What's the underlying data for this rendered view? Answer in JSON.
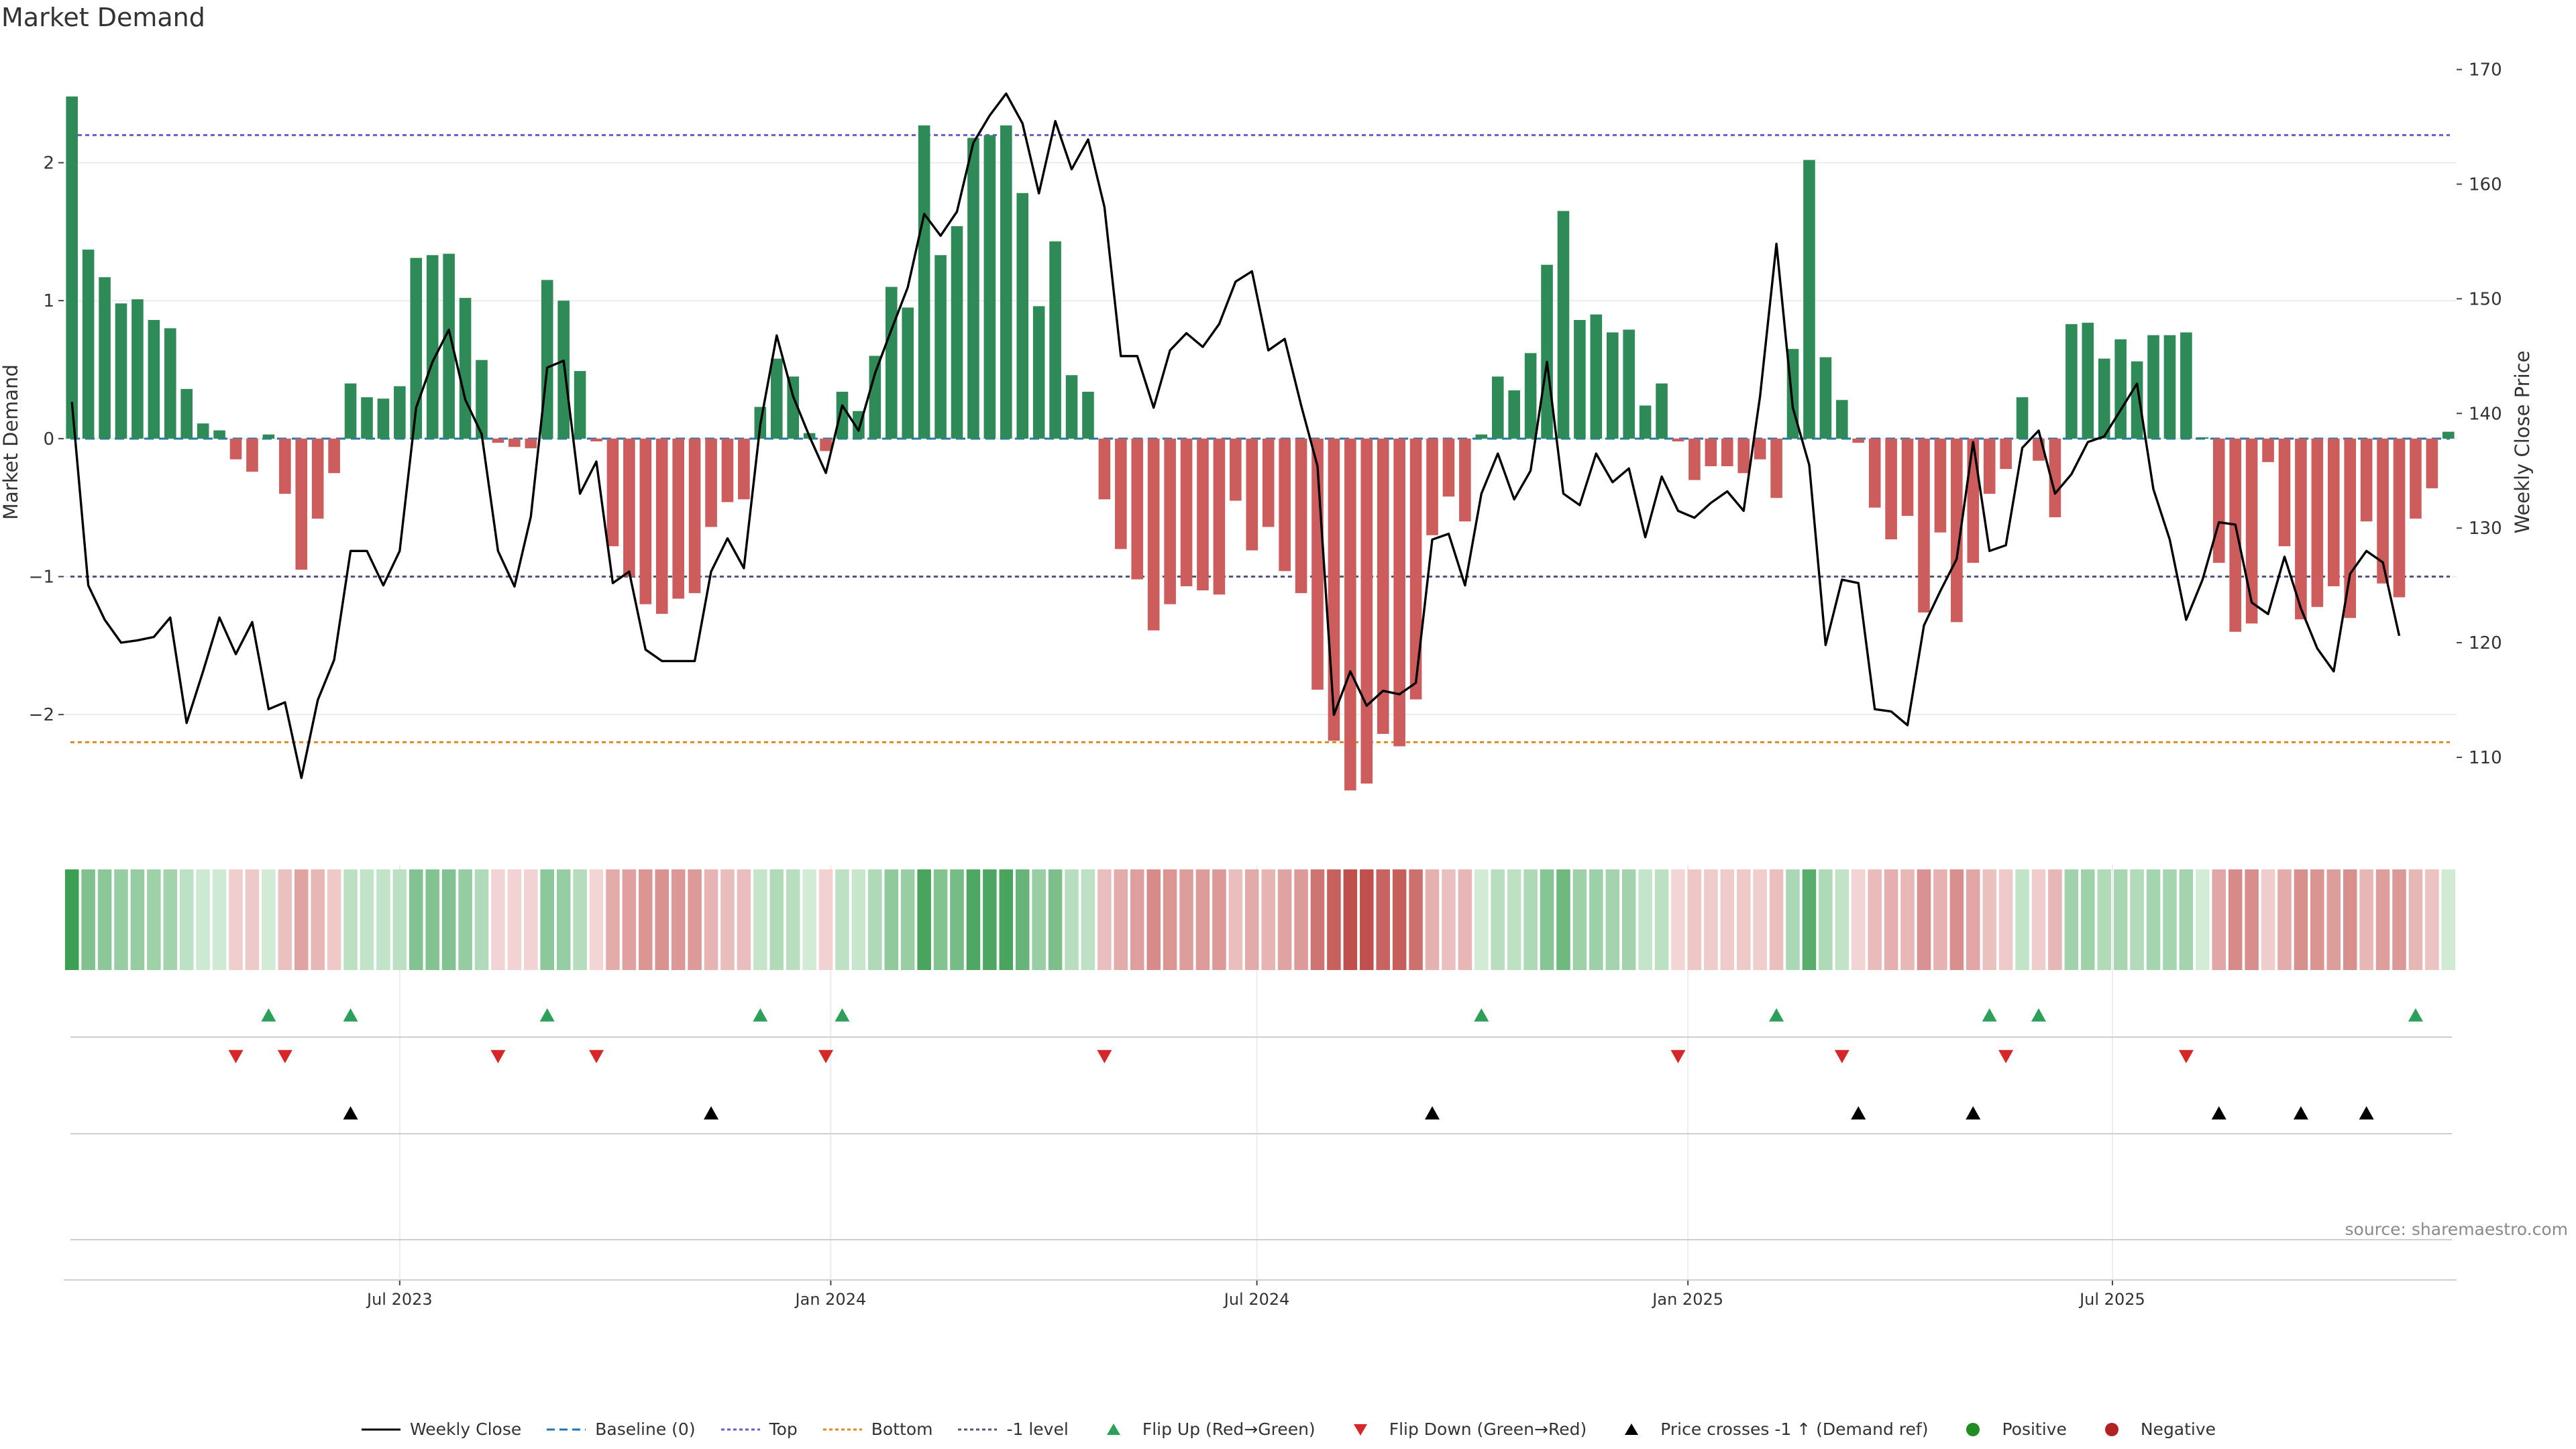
{
  "title": "Market Demand",
  "source": "source: sharemaestro.com",
  "colors": {
    "positive": "#2e8b57",
    "negative": "#cd5c5c",
    "price_line": "#000000",
    "top_line": "#6a5acd",
    "bottom_line": "#e08a1e",
    "minus1_line": "#555577",
    "baseline": "#1f77b4",
    "flip_up": "#2ca05a",
    "flip_down": "#d62728",
    "cross": "#000000"
  },
  "legend": [
    {
      "label": "Weekly Close",
      "symbol": "solid-line",
      "color": "#000000"
    },
    {
      "label": "Baseline (0)",
      "symbol": "dashed-line",
      "color": "#1f77b4"
    },
    {
      "label": "Top",
      "symbol": "dotted-line",
      "color": "#6a5acd"
    },
    {
      "label": "Bottom",
      "symbol": "dotted-line",
      "color": "#e08a1e"
    },
    {
      "label": "-1 level",
      "symbol": "dotted-line",
      "color": "#555577"
    },
    {
      "label": "Flip Up (Red→Green)",
      "symbol": "triangle-up",
      "color": "#2ca05a"
    },
    {
      "label": "Flip Down (Green→Red)",
      "symbol": "triangle-down",
      "color": "#d62728"
    },
    {
      "label": "Price crosses -1 ↑ (Demand ref)",
      "symbol": "triangle-up",
      "color": "#000000"
    },
    {
      "label": "Positive",
      "symbol": "circle",
      "color": "#228b22"
    },
    {
      "label": "Negative",
      "symbol": "circle",
      "color": "#b22222"
    }
  ],
  "chart_data": {
    "type": "bar+line",
    "title": "Market Demand",
    "ylabel": "Market Demand",
    "y2label": "Weekly Close Price",
    "ylim": [
      -2.85,
      2.8
    ],
    "y2lim": [
      103.5,
      171.5
    ],
    "yticks": [
      -2,
      -1,
      0,
      1,
      2
    ],
    "yticklabels": [
      "−2",
      "−1",
      "0",
      "1",
      "2"
    ],
    "y2ticks": [
      110,
      120,
      130,
      140,
      150,
      160,
      170
    ],
    "y2ticklabels": [
      "110",
      "120",
      "130",
      "140",
      "150",
      "160",
      "170"
    ],
    "xticks": [
      {
        "index": 20.5,
        "label": "Jul 2023"
      },
      {
        "index": 46.8,
        "label": "Jan 2024"
      },
      {
        "index": 72.8,
        "label": "Jul 2024"
      },
      {
        "index": 99.1,
        "label": "Jan 2025"
      },
      {
        "index": 125,
        "label": "Jul 2025"
      }
    ],
    "reference_lines": {
      "top": 2.2,
      "bottom": -2.2,
      "minus1": -1,
      "baseline": 0
    },
    "demand": [
      2.48,
      1.37,
      1.17,
      0.98,
      1.01,
      0.86,
      0.8,
      0.36,
      0.11,
      0.06,
      -0.15,
      -0.24,
      0.03,
      -0.4,
      -0.95,
      -0.58,
      -0.25,
      0.4,
      0.3,
      0.29,
      0.38,
      1.31,
      1.33,
      1.34,
      1.02,
      0.57,
      -0.03,
      -0.06,
      -0.07,
      1.15,
      1.0,
      0.49,
      -0.02,
      -0.78,
      -1.0,
      -1.2,
      -1.27,
      -1.16,
      -1.12,
      -0.64,
      -0.46,
      -0.44,
      0.23,
      0.58,
      0.45,
      0.04,
      -0.09,
      0.34,
      0.2,
      0.6,
      1.1,
      0.95,
      2.27,
      1.33,
      1.54,
      2.18,
      2.2,
      2.27,
      1.78,
      0.96,
      1.43,
      0.46,
      0.34,
      -0.44,
      -0.8,
      -1.02,
      -1.39,
      -1.2,
      -1.07,
      -1.1,
      -1.13,
      -0.45,
      -0.81,
      -0.64,
      -0.96,
      -1.12,
      -1.82,
      -2.19,
      -2.55,
      -2.5,
      -2.14,
      -2.23,
      -1.89,
      -0.7,
      -0.42,
      -0.6,
      0.03,
      0.45,
      0.35,
      0.62,
      1.26,
      1.65,
      0.86,
      0.9,
      0.77,
      0.79,
      0.24,
      0.4,
      -0.02,
      -0.3,
      -0.2,
      -0.2,
      -0.25,
      -0.15,
      -0.43,
      0.65,
      2.02,
      0.59,
      0.28,
      -0.03,
      -0.5,
      -0.73,
      -0.56,
      -1.26,
      -0.68,
      -1.33,
      -0.9,
      -0.4,
      -0.22,
      0.3,
      -0.16,
      -0.57,
      0.83,
      0.84,
      0.58,
      0.72,
      0.56,
      0.75,
      0.75,
      0.77,
      0.01,
      -0.9,
      -1.4,
      -1.34,
      -0.17,
      -0.78,
      -1.31,
      -1.22,
      -1.07,
      -1.3,
      -0.6,
      -1.05,
      -1.15,
      -0.58,
      -0.36,
      0.05
    ],
    "weekly_close": [
      141,
      125,
      122,
      120,
      120.2,
      120.5,
      122.2,
      113,
      117.5,
      122.2,
      119,
      121.8,
      114.2,
      114.8,
      108.2,
      115,
      118.5,
      128,
      128,
      125,
      128,
      140.5,
      144.5,
      147.3,
      141.2,
      138.2,
      128,
      124.9,
      131,
      144,
      144.6,
      133,
      135.8,
      125.2,
      126.2,
      119.4,
      118.4,
      118.4,
      118.4,
      126.2,
      129.1,
      126.5,
      139,
      146.8,
      141.5,
      138,
      134.8,
      140.7,
      138.5,
      143.5,
      147.3,
      151,
      157.4,
      155.5,
      157.6,
      163.6,
      166,
      167.9,
      165.3,
      159.2,
      165.5,
      161.3,
      163.9,
      158,
      145,
      145,
      140.5,
      145.5,
      147,
      145.8,
      147.8,
      151.5,
      152.4,
      145.5,
      146.5,
      140.7,
      135.4,
      113.7,
      117.5,
      114.5,
      115.8,
      115.5,
      116.5,
      129,
      129.5,
      125,
      133,
      136.5,
      132.5,
      135,
      144.5,
      133,
      132,
      136.5,
      134,
      135.2,
      129.2,
      134.5,
      131.5,
      130.9,
      132.2,
      133.2,
      131.5,
      141.5,
      154.8,
      140.5,
      135.5,
      119.8,
      125.5,
      125.2,
      114.2,
      114,
      112.8,
      121.5,
      124.5,
      127.3,
      137.5,
      128,
      128.5,
      137,
      138.5,
      133,
      134.7,
      137.5,
      138,
      140.3,
      142.6,
      133.4,
      129,
      122,
      125.5,
      130.5,
      130.3,
      123.5,
      122.5,
      127.5,
      123,
      119.5,
      117.5,
      126,
      128,
      127,
      120.6
    ],
    "flip_up_indices": [
      12,
      17,
      29,
      42,
      47,
      86,
      104,
      117,
      120,
      143
    ],
    "flip_down_indices": [
      10,
      13,
      26,
      32,
      46,
      63,
      98,
      108,
      118,
      129
    ],
    "price_cross_indices": [
      17,
      39,
      83,
      109,
      116,
      131,
      136,
      140
    ]
  }
}
